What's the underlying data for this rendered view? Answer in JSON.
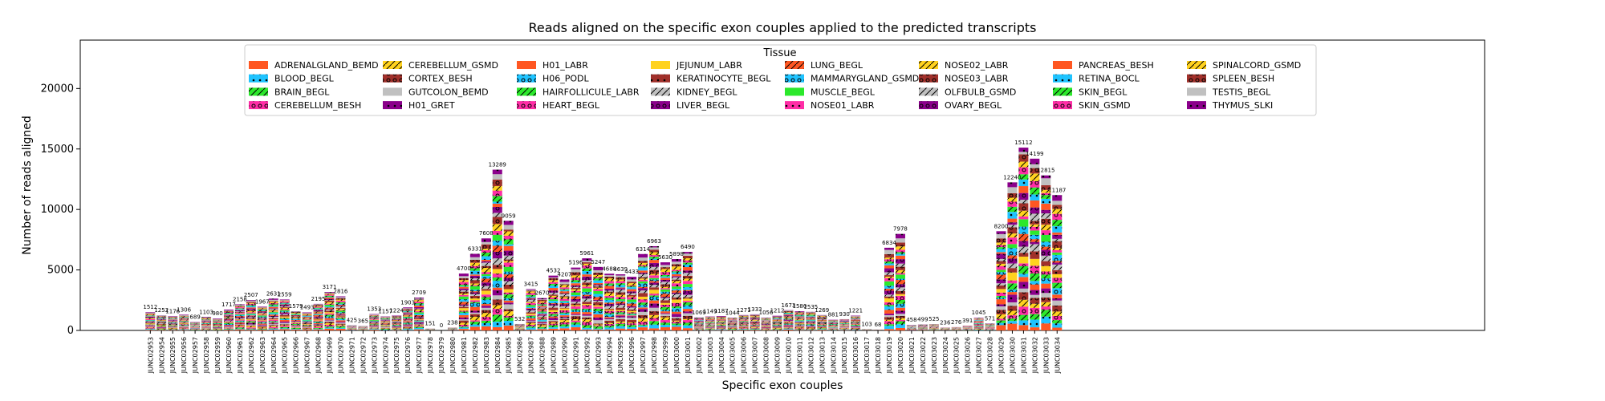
{
  "chart_data": {
    "type": "bar",
    "stacked": true,
    "title": "Reads aligned on the specific exon couples applied to the predicted transcripts",
    "xlabel": "Specific exon couples",
    "ylabel": "Number of reads aligned",
    "ylim": [
      0,
      24000
    ],
    "yticks": [
      0,
      5000,
      10000,
      15000,
      20000
    ],
    "ytick_labels": [
      "0",
      "5000",
      "10000",
      "15000",
      "20000"
    ],
    "grid": false,
    "legend": {
      "title": "Tissue",
      "placement": "upper-center",
      "columns": 8,
      "entries": [
        {
          "label": "ADRENALGLAND_BEMD",
          "color": "#FF5722",
          "pattern": "none"
        },
        {
          "label": "BLOOD_BEGL",
          "color": "#1FC3FF",
          "pattern": "dot"
        },
        {
          "label": "BRAIN_BEGL",
          "color": "#2BE82B",
          "pattern": "slash"
        },
        {
          "label": "CEREBELLUM_BESH",
          "color": "#FF2DA6",
          "pattern": "ring"
        },
        {
          "label": "CEREBELLUM_GSMD",
          "color": "#FFD21F",
          "pattern": "slash"
        },
        {
          "label": "CORTEX_BESH",
          "color": "#A0302A",
          "pattern": "ring"
        },
        {
          "label": "GUTCOLON_BEMD",
          "color": "#C0C0C0",
          "pattern": "none"
        },
        {
          "label": "H01_GRET",
          "color": "#8B008B",
          "pattern": "dot"
        },
        {
          "label": "H01_LABR",
          "color": "#FF5722",
          "pattern": "none"
        },
        {
          "label": "H06_PODL",
          "color": "#1FC3FF",
          "pattern": "ring"
        },
        {
          "label": "HAIRFOLLICULE_LABR",
          "color": "#2BE82B",
          "pattern": "slash"
        },
        {
          "label": "HEART_BEGL",
          "color": "#FF2DA6",
          "pattern": "ring"
        },
        {
          "label": "JEJUNUM_LABR",
          "color": "#FFD21F",
          "pattern": "none"
        },
        {
          "label": "KERATINOCYTE_BEGL",
          "color": "#A0302A",
          "pattern": "dot"
        },
        {
          "label": "KIDNEY_BEGL",
          "color": "#C0C0C0",
          "pattern": "slash"
        },
        {
          "label": "LIVER_BEGL",
          "color": "#8B008B",
          "pattern": "ring"
        },
        {
          "label": "LUNG_BEGL",
          "color": "#FF5722",
          "pattern": "slash"
        },
        {
          "label": "MAMMARYGLAND_GSMD",
          "color": "#1FC3FF",
          "pattern": "ring"
        },
        {
          "label": "MUSCLE_BEGL",
          "color": "#2BE82B",
          "pattern": "none"
        },
        {
          "label": "NOSE01_LABR",
          "color": "#FF2DA6",
          "pattern": "dot"
        },
        {
          "label": "NOSE02_LABR",
          "color": "#FFD21F",
          "pattern": "slash"
        },
        {
          "label": "NOSE03_LABR",
          "color": "#A0302A",
          "pattern": "ring"
        },
        {
          "label": "OLFBULB_GSMD",
          "color": "#C0C0C0",
          "pattern": "slash"
        },
        {
          "label": "OVARY_BEGL",
          "color": "#8B008B",
          "pattern": "ring"
        },
        {
          "label": "PANCREAS_BESH",
          "color": "#FF5722",
          "pattern": "none"
        },
        {
          "label": "RETINA_BOCL",
          "color": "#1FC3FF",
          "pattern": "dot"
        },
        {
          "label": "SKIN_BEGL",
          "color": "#2BE82B",
          "pattern": "slash"
        },
        {
          "label": "SKIN_GSMD",
          "color": "#FF2DA6",
          "pattern": "ring"
        },
        {
          "label": "SPINALCORD_GSMD",
          "color": "#FFD21F",
          "pattern": "slash"
        },
        {
          "label": "SPLEEN_BESH",
          "color": "#A0302A",
          "pattern": "ring"
        },
        {
          "label": "TESTIS_BEGL",
          "color": "#C0C0C0",
          "pattern": "none"
        },
        {
          "label": "THYMUS_SLKI",
          "color": "#8B008B",
          "pattern": "dot"
        }
      ]
    },
    "categories": [
      "JUNC02953",
      "JUNC02954",
      "JUNC02955",
      "JUNC02956",
      "JUNC02957",
      "JUNC02958",
      "JUNC02959",
      "JUNC02960",
      "JUNC02961",
      "JUNC02962",
      "JUNC02963",
      "JUNC02964",
      "JUNC02965",
      "JUNC02966",
      "JUNC02967",
      "JUNC02968",
      "JUNC02969",
      "JUNC02970",
      "JUNC02971",
      "JUNC02972",
      "JUNC02973",
      "JUNC02974",
      "JUNC02975",
      "JUNC02976",
      "JUNC02977",
      "JUNC02978",
      "JUNC02979",
      "JUNC02980",
      "JUNC02981",
      "JUNC02982",
      "JUNC02983",
      "JUNC02984",
      "JUNC02985",
      "JUNC02986",
      "JUNC02987",
      "JUNC02988",
      "JUNC02989",
      "JUNC02990",
      "JUNC02991",
      "JUNC02992",
      "JUNC02993",
      "JUNC02994",
      "JUNC02995",
      "JUNC02996",
      "JUNC02997",
      "JUNC02998",
      "JUNC02999",
      "JUNC03000",
      "JUNC03001",
      "JUNC03002",
      "JUNC03003",
      "JUNC03004",
      "JUNC03005",
      "JUNC03006",
      "JUNC03007",
      "JUNC03008",
      "JUNC03009",
      "JUNC03010",
      "JUNC03011",
      "JUNC03012",
      "JUNC03013",
      "JUNC03014",
      "JUNC03015",
      "JUNC03016",
      "JUNC03017",
      "JUNC03018",
      "JUNC03019",
      "JUNC03020",
      "JUNC03021",
      "JUNC03022",
      "JUNC03023",
      "JUNC03024",
      "JUNC03025",
      "JUNC03026",
      "JUNC03027",
      "JUNC03028",
      "JUNC03029",
      "JUNC03030",
      "JUNC03031",
      "JUNC03032",
      "JUNC03033",
      "JUNC03034"
    ],
    "totals": [
      1512,
      1252,
      1176,
      1306,
      689,
      1103,
      980,
      1717,
      2158,
      2507,
      1967,
      2631,
      2559,
      1579,
      1493,
      2195,
      3171,
      2816,
      425,
      365,
      1353,
      1157,
      1224,
      1903,
      2709,
      151,
      0,
      238,
      4700,
      6331,
      7608,
      13289,
      9059,
      532,
      3415,
      2670,
      4532,
      4207,
      5196,
      5961,
      5247,
      4688,
      4639,
      4433,
      6314,
      6963,
      5630,
      5898,
      6490,
      1069,
      1149,
      1187,
      1044,
      1271,
      1333,
      1056,
      1212,
      1673,
      1580,
      1535,
      1269,
      881,
      930,
      1221,
      103,
      68,
      6834,
      7978,
      458,
      499,
      525,
      236,
      276,
      391,
      1045,
      571,
      8200,
      12240,
      15112,
      14199,
      12815,
      11187
    ],
    "total_labels": [
      "1512",
      "1252",
      "1176",
      "1306",
      "689",
      "1103",
      "980",
      "1717",
      "2158",
      "2507",
      "1967",
      "2631",
      "2559",
      "1579",
      "1493",
      "2195",
      "3171",
      "2816",
      "425",
      "365",
      "1353",
      "1157",
      "1224",
      "1903",
      "2709",
      "151",
      "0",
      "238",
      "4700",
      "6331",
      "7608",
      "13289",
      "9059",
      "532",
      "3415",
      "2670",
      "4532",
      "4207",
      "5196",
      "5961",
      "5247",
      "4688",
      "4639",
      "4433",
      "6314",
      "6963",
      "5630",
      "5898",
      "6490",
      "1069",
      "1149",
      "1187",
      "1044",
      "1271",
      "1333",
      "1056",
      "1212",
      "1673",
      "1580",
      "1535",
      "1269",
      "881",
      "930",
      "1221",
      "103",
      "68",
      "6834",
      "7978",
      "458",
      "499",
      "525",
      "236",
      "276",
      "391",
      "1045",
      "571",
      "8200",
      "12240",
      "15112",
      "14199",
      "12815",
      "11187"
    ],
    "stack_order": "bottom-to-top follows legend order"
  }
}
